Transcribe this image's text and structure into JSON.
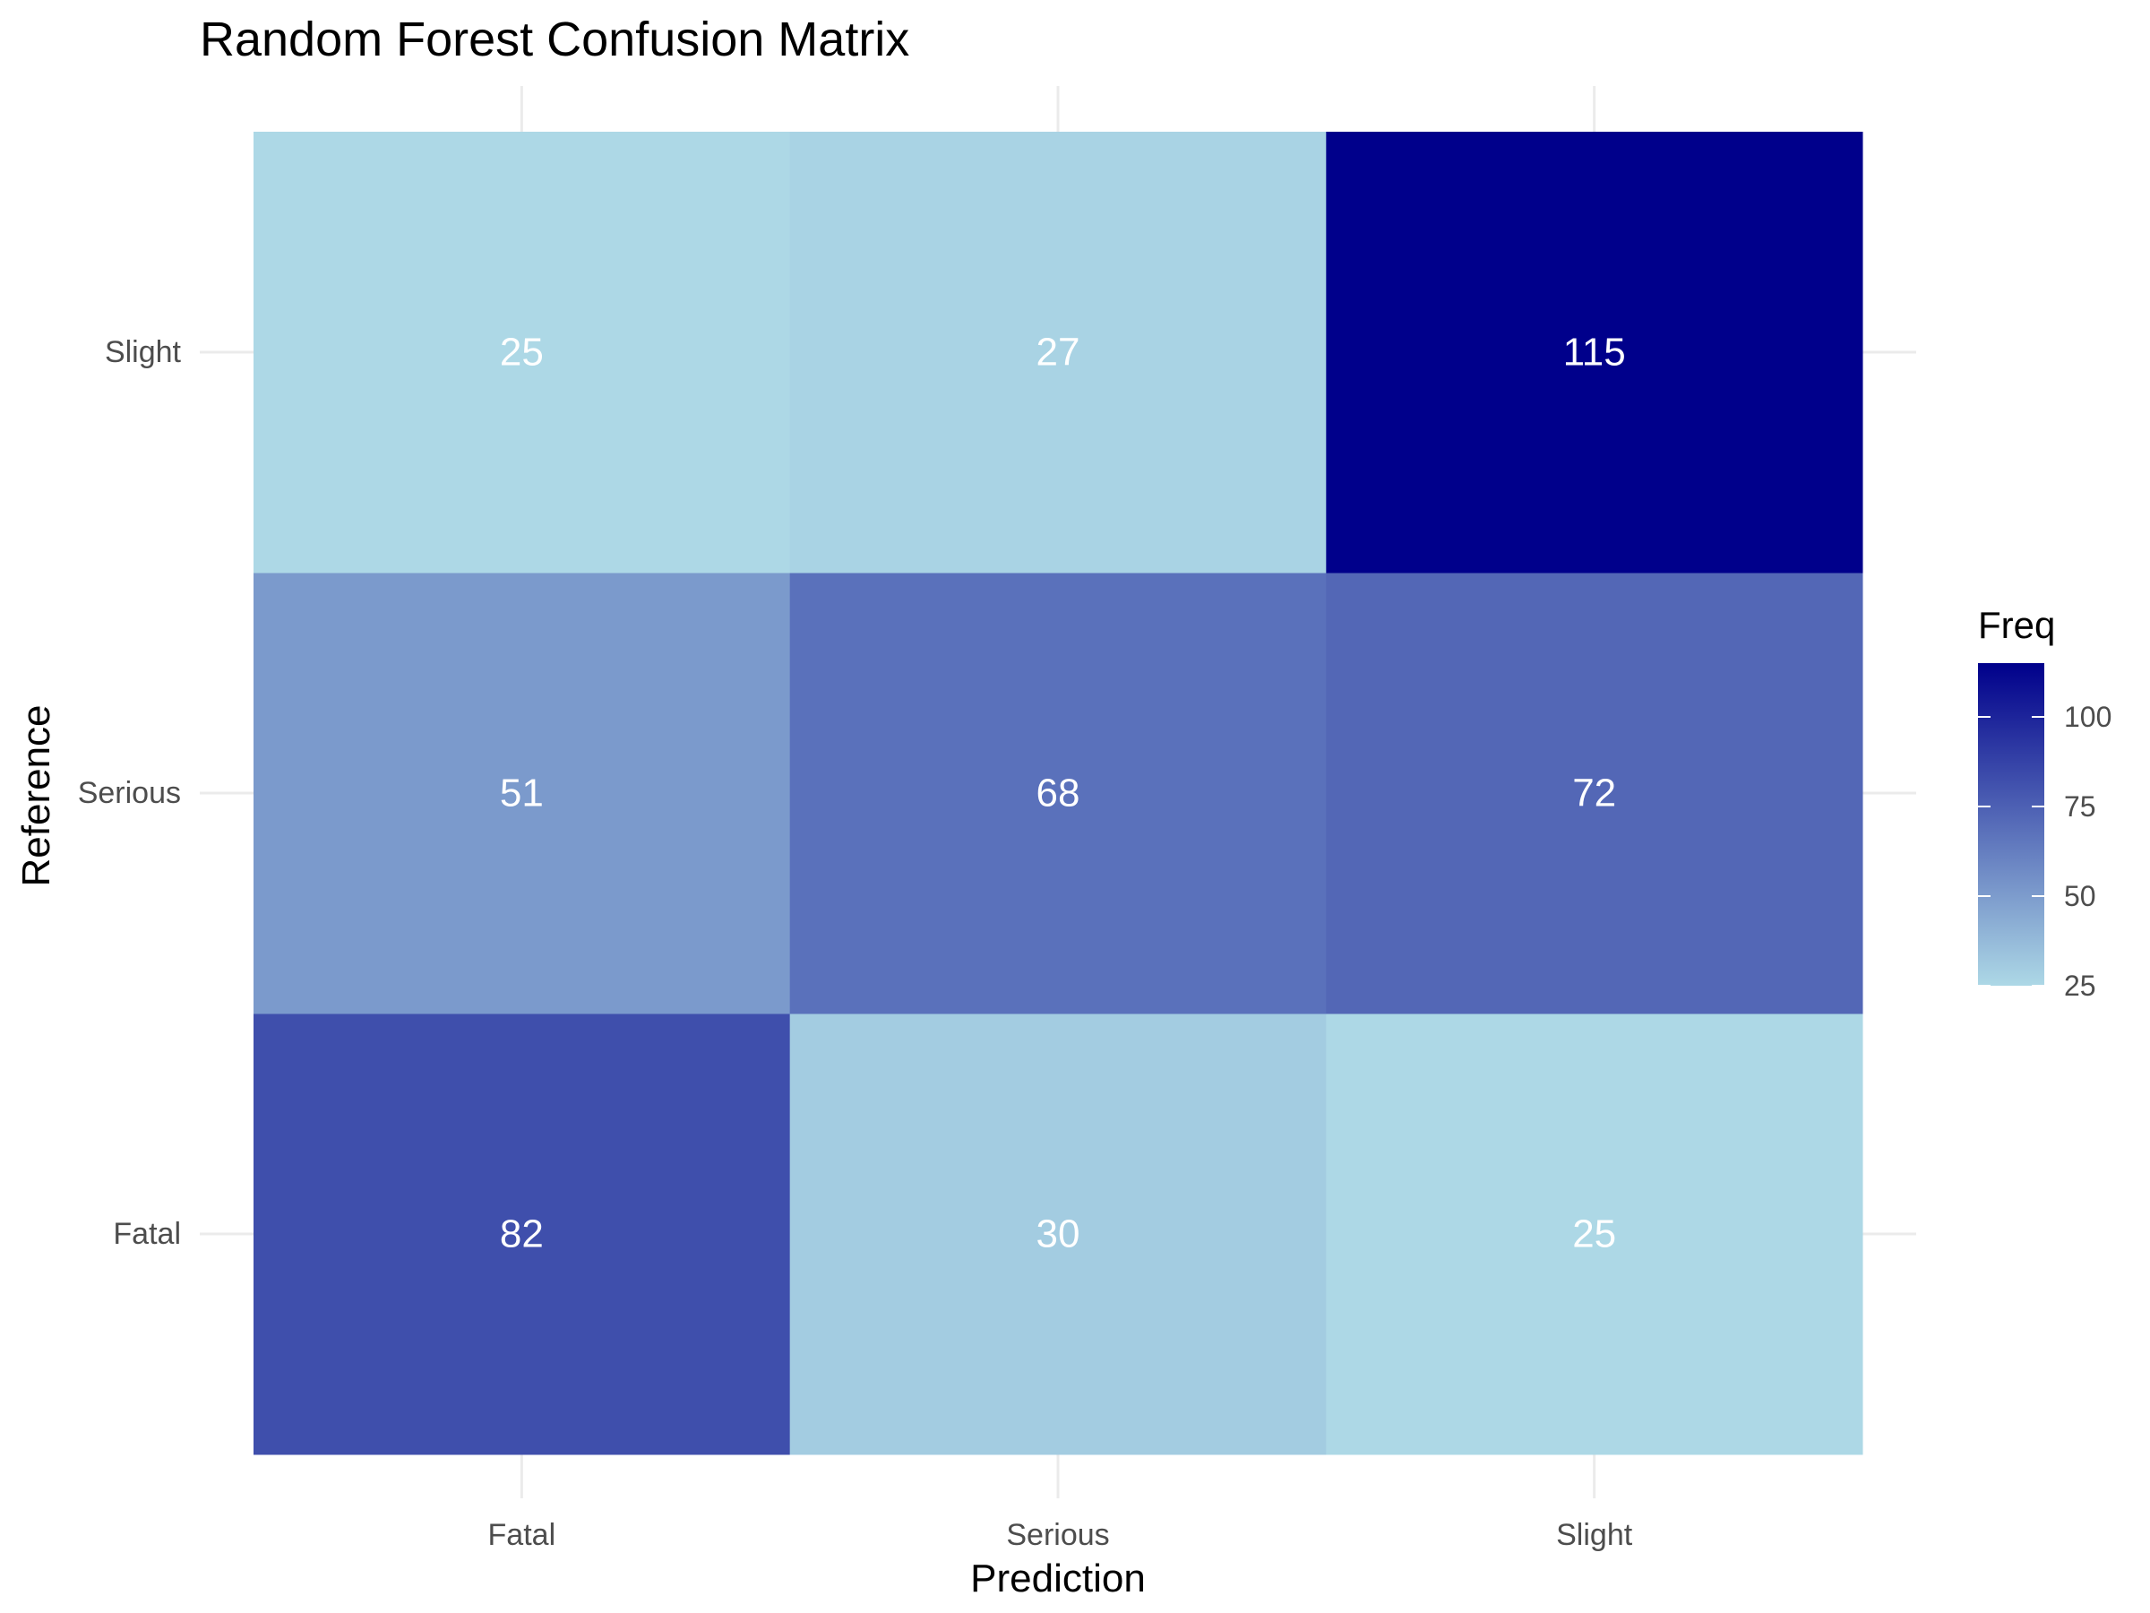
{
  "chart_data": {
    "type": "heatmap",
    "title": "Random Forest Confusion Matrix",
    "xlabel": "Prediction",
    "ylabel": "Reference",
    "x_categories": [
      "Fatal",
      "Serious",
      "Slight"
    ],
    "y_categories": [
      "Fatal",
      "Serious",
      "Slight"
    ],
    "cells": [
      {
        "reference": "Fatal",
        "prediction": "Fatal",
        "value": 82
      },
      {
        "reference": "Fatal",
        "prediction": "Serious",
        "value": 30
      },
      {
        "reference": "Fatal",
        "prediction": "Slight",
        "value": 25
      },
      {
        "reference": "Serious",
        "prediction": "Fatal",
        "value": 51
      },
      {
        "reference": "Serious",
        "prediction": "Serious",
        "value": 68
      },
      {
        "reference": "Serious",
        "prediction": "Slight",
        "value": 72
      },
      {
        "reference": "Slight",
        "prediction": "Fatal",
        "value": 25
      },
      {
        "reference": "Slight",
        "prediction": "Serious",
        "value": 27
      },
      {
        "reference": "Slight",
        "prediction": "Slight",
        "value": 115
      }
    ],
    "color_scale": {
      "low": "#add8e6",
      "high": "#00008b",
      "min": 25,
      "max": 115
    },
    "legend": {
      "title": "Freq",
      "ticks": [
        25,
        50,
        75,
        100
      ],
      "placement": "right"
    },
    "grid": true
  }
}
